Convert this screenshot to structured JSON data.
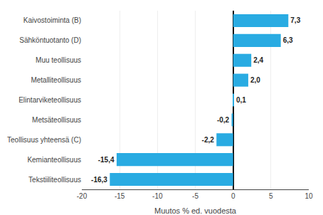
{
  "chart_data": {
    "type": "bar",
    "orientation": "horizontal",
    "categories": [
      "Tekstiiliteollisuus",
      "Kemianteollisuus",
      "Teollisuus yhteensä (C)",
      "Metsäteollisuus",
      "Elintarviketeollisuus",
      "Metalliteollisuus",
      "Muu teollisuus",
      "Sähköntuotanto (D)",
      "Kaivostoiminta (B)"
    ],
    "values": [
      -16.3,
      -15.4,
      -2.2,
      -0.2,
      0.1,
      2.0,
      2.4,
      6.3,
      7.3
    ],
    "value_labels": [
      "-16,3",
      "-15,4",
      "-2,2",
      "-0,2",
      "0,1",
      "2,0",
      "2,4",
      "6,3",
      "7,3"
    ],
    "data_labels": true,
    "color": "#29abe2",
    "xlabel": "Muutos % ed. vuodesta",
    "xlim": [
      -20,
      10
    ],
    "xticks": [
      -20,
      -15,
      -10,
      -5,
      0,
      5,
      10
    ],
    "grid": true
  }
}
